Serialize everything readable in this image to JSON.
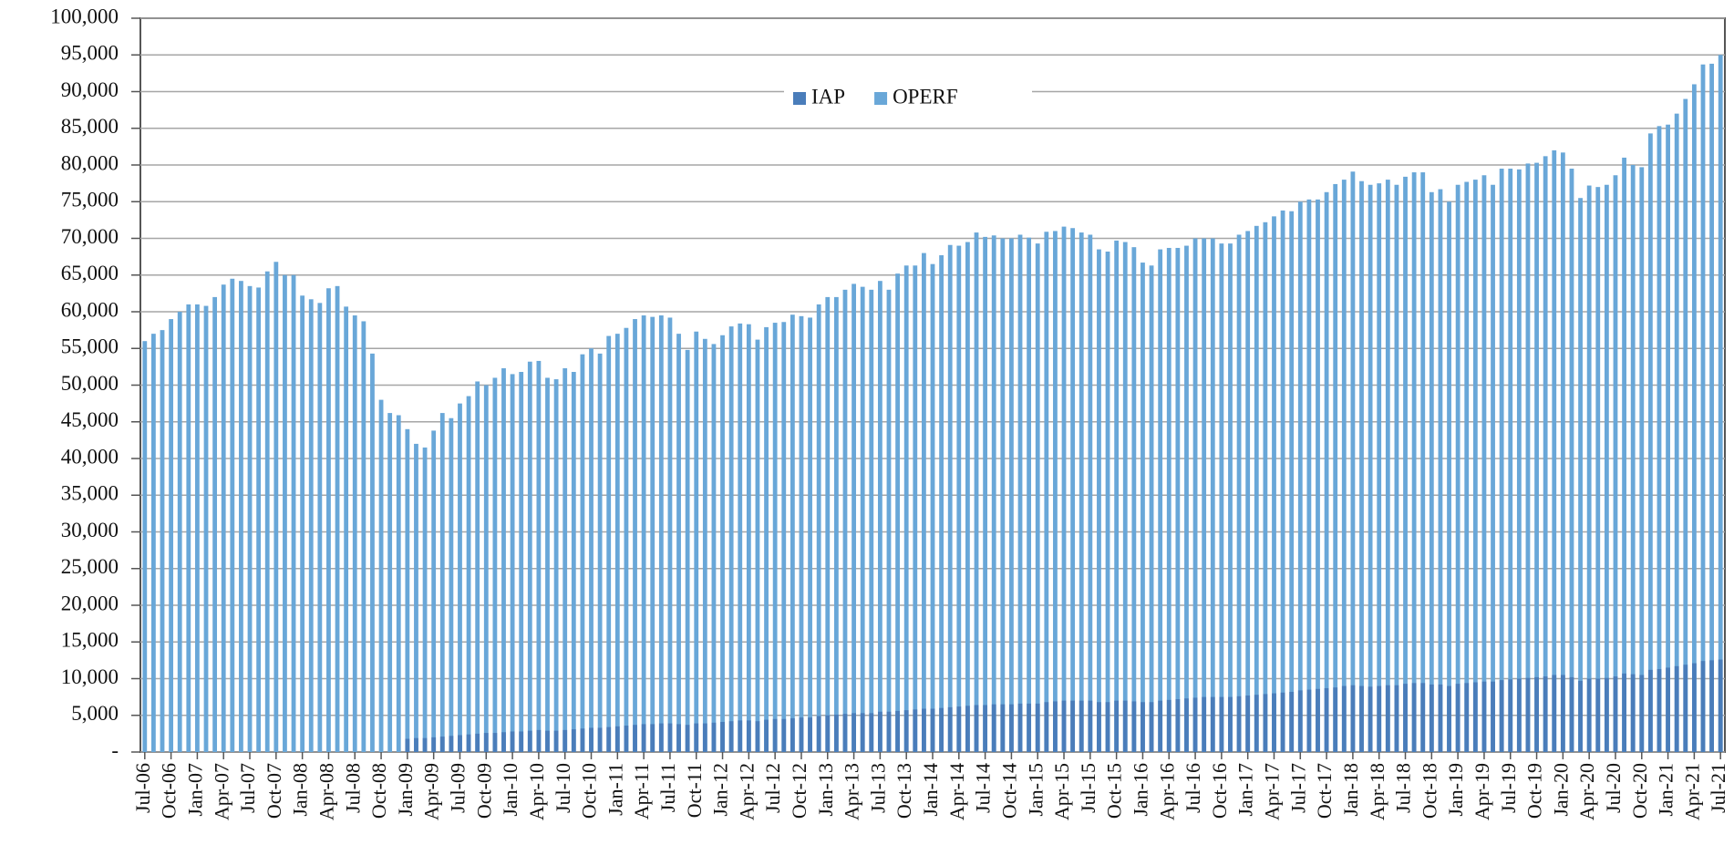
{
  "chart_data": {
    "type": "bar",
    "stacked": false,
    "legend": "top",
    "grid": true,
    "categories": [
      "Jul-06",
      null,
      null,
      "Oct-06",
      null,
      null,
      "Jan-07",
      null,
      null,
      "Apr-07",
      null,
      null,
      "Jul-07",
      null,
      null,
      "Oct-07",
      null,
      null,
      "Jan-08",
      null,
      null,
      "Apr-08",
      null,
      null,
      "Jul-08",
      null,
      null,
      "Oct-08",
      null,
      null,
      "Jan-09",
      null,
      null,
      "Apr-09",
      null,
      null,
      "Jul-09",
      null,
      null,
      "Oct-09",
      null,
      null,
      "Jan-10",
      null,
      null,
      "Apr-10",
      null,
      null,
      "Jul-10",
      null,
      null,
      "Oct-10",
      null,
      null,
      "Jan-11",
      null,
      null,
      "Apr-11",
      null,
      null,
      "Jul-11",
      null,
      null,
      "Oct-11",
      null,
      null,
      "Jan-12",
      null,
      null,
      "Apr-12",
      null,
      null,
      "Jul-12",
      null,
      null,
      "Oct-12",
      null,
      null,
      "Jan-13",
      null,
      null,
      "Apr-13",
      null,
      null,
      "Jul-13",
      null,
      null,
      "Oct-13",
      null,
      null,
      "Jan-14",
      null,
      null,
      "Apr-14",
      null,
      null,
      "Jul-14",
      null,
      null,
      "Oct-14",
      null,
      null,
      "Jan-15",
      null,
      null,
      "Apr-15",
      null,
      null,
      "Jul-15",
      null,
      null,
      "Oct-15",
      null,
      null,
      "Jan-16",
      null,
      null,
      "Apr-16",
      null,
      null,
      "Jul-16",
      null,
      null,
      "Oct-16",
      null,
      null,
      "Jan-17",
      null,
      null,
      "Apr-17",
      null,
      null,
      "Jul-17",
      null,
      null,
      "Oct-17",
      null,
      null,
      "Jan-18",
      null,
      null,
      "Apr-18",
      null,
      null,
      "Jul-18",
      null,
      null,
      "Oct-18",
      null,
      null,
      "Jan-19",
      null,
      null,
      "Apr-19",
      null,
      null,
      "Jul-19",
      null,
      null,
      "Oct-19",
      null,
      null,
      "Jan-20",
      null,
      null,
      "Apr-20",
      null,
      null,
      "Jul-20",
      null,
      null,
      "Oct-20",
      null,
      null,
      "Jan-21",
      null,
      null,
      "Apr-21",
      null,
      null,
      "Jul-21"
    ],
    "series": [
      {
        "name": "OPERF",
        "color": "#69a7d8",
        "values": [
          56000,
          57000,
          57500,
          59000,
          60000,
          61000,
          61000,
          60800,
          62000,
          63700,
          64500,
          64200,
          63500,
          63300,
          65500,
          66800,
          65000,
          65000,
          62200,
          61700,
          61200,
          63200,
          63500,
          60700,
          59500,
          58700,
          54300,
          48000,
          46200,
          45900,
          44000,
          42000,
          41500,
          43800,
          46200,
          45500,
          47500,
          48500,
          50500,
          50000,
          51000,
          52300,
          51500,
          51800,
          53200,
          53300,
          51000,
          50800,
          52300,
          51800,
          54200,
          55000,
          54300,
          56700,
          57000,
          57800,
          59000,
          59500,
          59300,
          59500,
          59200,
          57000,
          54800,
          57300,
          56300,
          55600,
          56800,
          58000,
          58400,
          58300,
          56200,
          57900,
          58500,
          58600,
          59600,
          59400,
          59200,
          61000,
          62000,
          62000,
          63000,
          63800,
          63400,
          63000,
          64200,
          63000,
          65200,
          66300,
          66300,
          68000,
          66500,
          67700,
          69100,
          69000,
          69500,
          70800,
          70200,
          70400,
          70000,
          70000,
          70500,
          70100,
          69300,
          70900,
          71000,
          71600,
          71400,
          70800,
          70500,
          68500,
          68200,
          69700,
          69500,
          68800,
          66700,
          66300,
          68500,
          68700,
          68700,
          69000,
          70000,
          70000,
          70000,
          69300,
          69300,
          70500,
          71000,
          71700,
          72200,
          73000,
          73800,
          73700,
          75000,
          75300,
          75300,
          76300,
          77400,
          78000,
          79100,
          77800,
          77300,
          77500,
          78000,
          77300,
          78400,
          79000,
          79000,
          76300,
          76700,
          75000,
          77300,
          77700,
          78000,
          78600,
          77300,
          79500,
          79500,
          79400,
          80200,
          80300,
          81200,
          82000,
          81700,
          79500,
          75500,
          77200,
          77000,
          77300,
          78600,
          81000,
          80000,
          79700,
          84300,
          85300,
          85500,
          87000,
          89000,
          91000,
          93700,
          93800,
          95000
        ]
      },
      {
        "name": "IAP",
        "color": "#4a7dba",
        "values": [
          0,
          0,
          0,
          0,
          0,
          0,
          0,
          0,
          0,
          0,
          0,
          0,
          0,
          0,
          0,
          0,
          0,
          0,
          0,
          0,
          0,
          0,
          0,
          0,
          0,
          0,
          0,
          0,
          0,
          0,
          1800,
          1900,
          1900,
          2000,
          2100,
          2200,
          2300,
          2400,
          2500,
          2600,
          2600,
          2700,
          2800,
          2800,
          2900,
          3000,
          2900,
          2900,
          3000,
          3100,
          3200,
          3300,
          3300,
          3400,
          3500,
          3600,
          3700,
          3800,
          3800,
          3900,
          3900,
          3800,
          3700,
          3900,
          3900,
          4000,
          4100,
          4200,
          4300,
          4300,
          4200,
          4400,
          4500,
          4500,
          4600,
          4700,
          4700,
          4900,
          5000,
          5100,
          5200,
          5300,
          5300,
          5300,
          5500,
          5500,
          5600,
          5700,
          5800,
          5900,
          5900,
          6000,
          6100,
          6200,
          6300,
          6400,
          6400,
          6500,
          6500,
          6500,
          6600,
          6600,
          6600,
          6800,
          6900,
          7000,
          7000,
          7000,
          7000,
          6800,
          6800,
          7000,
          7000,
          6900,
          6800,
          6800,
          7000,
          7100,
          7200,
          7300,
          7400,
          7500,
          7500,
          7500,
          7500,
          7600,
          7700,
          7800,
          7900,
          8000,
          8100,
          8200,
          8400,
          8500,
          8600,
          8700,
          8800,
          9000,
          9100,
          9000,
          8900,
          9000,
          9100,
          9100,
          9300,
          9400,
          9400,
          9200,
          9200,
          9000,
          9300,
          9400,
          9500,
          9600,
          9600,
          9800,
          9900,
          10000,
          10100,
          10200,
          10300,
          10500,
          10500,
          10200,
          9700,
          10000,
          10000,
          10100,
          10300,
          10700,
          10600,
          10500,
          11200,
          11300,
          11500,
          11700,
          11900,
          12100,
          12400,
          12500,
          12600
        ]
      }
    ],
    "ylim": [
      0,
      100000
    ],
    "yticks": [
      {
        "value": 0,
        "label": "-"
      },
      {
        "value": 5000,
        "label": "5,000"
      },
      {
        "value": 10000,
        "label": "10,000"
      },
      {
        "value": 15000,
        "label": "15,000"
      },
      {
        "value": 20000,
        "label": "20,000"
      },
      {
        "value": 25000,
        "label": "25,000"
      },
      {
        "value": 30000,
        "label": "30,000"
      },
      {
        "value": 35000,
        "label": "35,000"
      },
      {
        "value": 40000,
        "label": "40,000"
      },
      {
        "value": 45000,
        "label": "45,000"
      },
      {
        "value": 50000,
        "label": "50,000"
      },
      {
        "value": 55000,
        "label": "55,000"
      },
      {
        "value": 60000,
        "label": "60,000"
      },
      {
        "value": 65000,
        "label": "65,000"
      },
      {
        "value": 70000,
        "label": "70,000"
      },
      {
        "value": 75000,
        "label": "75,000"
      },
      {
        "value": 80000,
        "label": "80,000"
      },
      {
        "value": 85000,
        "label": "85,000"
      },
      {
        "value": 90000,
        "label": "90,000"
      },
      {
        "value": 95000,
        "label": "95,000"
      },
      {
        "value": 100000,
        "label": "100,000"
      }
    ]
  }
}
